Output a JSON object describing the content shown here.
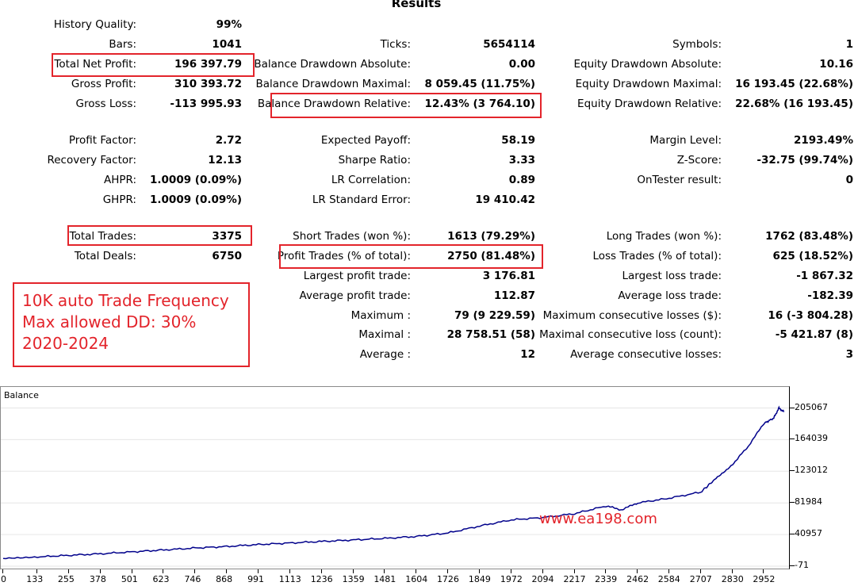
{
  "title": "Results",
  "col1": [
    {
      "label": "History Quality:",
      "value": "99%"
    },
    {
      "label": "Bars:",
      "value": "1041"
    },
    {
      "label": "Total Net Profit:",
      "value": "196 397.79"
    },
    {
      "label": "Gross Profit:",
      "value": "310 393.72"
    },
    {
      "label": "Gross Loss:",
      "value": "-113 995.93"
    },
    {
      "label": "Profit Factor:",
      "value": "2.72"
    },
    {
      "label": "Recovery Factor:",
      "value": "12.13"
    },
    {
      "label": "AHPR:",
      "value": "1.0009 (0.09%)"
    },
    {
      "label": "GHPR:",
      "value": "1.0009 (0.09%)"
    },
    {
      "label": "Total Trades:",
      "value": "3375"
    },
    {
      "label": "Total Deals:",
      "value": "6750"
    }
  ],
  "col2": [
    {
      "label": "Ticks:",
      "value": "5654114"
    },
    {
      "label": "Balance Drawdown Absolute:",
      "value": "0.00"
    },
    {
      "label": "Balance Drawdown Maximal:",
      "value": "8 059.45 (11.75%)"
    },
    {
      "label": "Balance Drawdown Relative:",
      "value": "12.43% (3 764.10)"
    },
    {
      "label": "Expected Payoff:",
      "value": "58.19"
    },
    {
      "label": "Sharpe Ratio:",
      "value": "3.33"
    },
    {
      "label": "LR Correlation:",
      "value": "0.89"
    },
    {
      "label": "LR Standard Error:",
      "value": "19 410.42"
    },
    {
      "label": "Short Trades (won %):",
      "value": "1613 (79.29%)"
    },
    {
      "label": "Profit Trades (% of total):",
      "value": "2750 (81.48%)"
    },
    {
      "label": "Largest profit trade:",
      "value": "3 176.81"
    },
    {
      "label": "Average profit trade:",
      "value": "112.87"
    },
    {
      "label": "Maximum :",
      "value": "79 (9 229.59)"
    },
    {
      "label": "Maximal :",
      "value": "28 758.51 (58)"
    },
    {
      "label": "Average :",
      "value": "12"
    }
  ],
  "col3": [
    {
      "label": "Symbols:",
      "value": "1"
    },
    {
      "label": "Equity Drawdown Absolute:",
      "value": "10.16"
    },
    {
      "label": "Equity Drawdown Maximal:",
      "value": "16 193.45 (22.68%)"
    },
    {
      "label": "Equity Drawdown Relative:",
      "value": "22.68% (16 193.45)"
    },
    {
      "label": "Margin Level:",
      "value": "2193.49%"
    },
    {
      "label": "Z-Score:",
      "value": "-32.75 (99.74%)"
    },
    {
      "label": "OnTester result:",
      "value": "0"
    },
    {
      "label": "Long Trades (won %):",
      "value": "1762 (83.48%)"
    },
    {
      "label": "Loss Trades (% of total):",
      "value": "625 (18.52%)"
    },
    {
      "label": "Largest loss trade:",
      "value": "-1 867.32"
    },
    {
      "label": "Average loss trade:",
      "value": "-182.39"
    },
    {
      "label": "Maximum consecutive losses ($):",
      "value": "16 (-3 804.28)"
    },
    {
      "label": "Maximal consecutive loss (count):",
      "value": "-5 421.87 (8)"
    },
    {
      "label": "Average consecutive losses:",
      "value": "3"
    }
  ],
  "note": [
    "10K auto Trade Frequency",
    "Max allowed DD: 30%",
    "2020-2024"
  ],
  "watermark": "www.ea198.com",
  "colors": {
    "highlight": "#e3242b",
    "line": "#00008b"
  },
  "chart_data": {
    "type": "line",
    "label": "Balance",
    "ylim": [
      -71,
      220000
    ],
    "xlim": [
      0,
      3040
    ],
    "yticks": [
      "205067",
      "164039",
      "123012",
      "81984",
      "40957",
      "-71"
    ],
    "xticks": [
      "0",
      "133",
      "255",
      "378",
      "501",
      "623",
      "746",
      "868",
      "991",
      "1113",
      "1236",
      "1359",
      "1481",
      "1604",
      "1726",
      "1849",
      "1972",
      "2094",
      "2217",
      "2339",
      "2462",
      "2584",
      "2707",
      "2830",
      "2952"
    ],
    "series": [
      {
        "x": [
          0,
          133,
          255,
          378,
          501,
          623,
          746,
          868,
          991,
          1113,
          1236,
          1359,
          1481,
          1604,
          1726,
          1849,
          1972,
          2094,
          2217,
          2339,
          2400,
          2462,
          2584,
          2707,
          2760,
          2830,
          2890,
          2952,
          2990,
          3010,
          3030
        ],
        "y": [
          10000,
          12000,
          14000,
          16000,
          18500,
          21000,
          23500,
          25500,
          28000,
          30000,
          32000,
          34000,
          36000,
          38500,
          43000,
          52000,
          60000,
          63000,
          68000,
          78000,
          73000,
          82000,
          88000,
          96000,
          112000,
          132000,
          155000,
          185000,
          192000,
          205000,
          200000
        ]
      }
    ]
  }
}
